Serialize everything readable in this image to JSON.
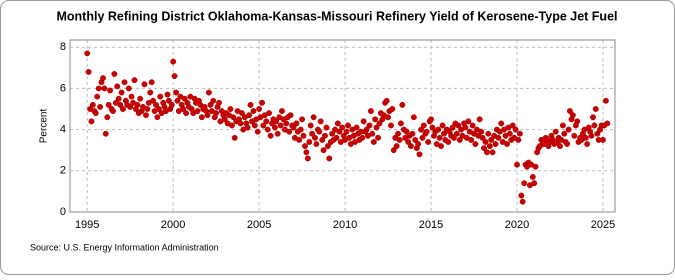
{
  "chart_data": {
    "type": "scatter",
    "title": "Monthly Refining District Oklahoma-Kansas-Missouri Refinery Yield of Kerosene-Type Jet Fuel",
    "y_label": "Percent",
    "source": "Source: U.S. Energy Information Administration",
    "xlim": [
      1994,
      2025.7
    ],
    "xticks": [
      1995,
      2000,
      2005,
      2010,
      2015,
      2020,
      2025
    ],
    "ylim": [
      0,
      8.35
    ],
    "yticks": [
      0,
      2,
      4,
      6,
      8
    ],
    "grid": true,
    "series": [
      {
        "color": "#cc0000",
        "x": [
          1995,
          1995.08,
          1995.17,
          1995.25,
          1995.33,
          1995.42,
          1995.5,
          1995.58,
          1995.67,
          1995.75,
          1995.83,
          1995.92,
          1996,
          1996.08,
          1996.17,
          1996.25,
          1996.33,
          1996.42,
          1996.5,
          1996.58,
          1996.67,
          1996.75,
          1996.83,
          1996.92,
          1997,
          1997.08,
          1997.17,
          1997.25,
          1997.33,
          1997.42,
          1997.5,
          1997.58,
          1997.67,
          1997.75,
          1997.83,
          1997.92,
          1998,
          1998.08,
          1998.17,
          1998.25,
          1998.33,
          1998.42,
          1998.5,
          1998.58,
          1998.67,
          1998.75,
          1998.83,
          1998.92,
          1999,
          1999.08,
          1999.17,
          1999.25,
          1999.33,
          1999.42,
          1999.5,
          1999.58,
          1999.67,
          1999.75,
          1999.83,
          1999.92,
          2000,
          2000.08,
          2000.17,
          2000.25,
          2000.33,
          2000.42,
          2000.5,
          2000.58,
          2000.67,
          2000.75,
          2000.83,
          2000.92,
          2001,
          2001.08,
          2001.17,
          2001.25,
          2001.33,
          2001.42,
          2001.5,
          2001.58,
          2001.67,
          2001.75,
          2001.83,
          2001.92,
          2002,
          2002.08,
          2002.17,
          2002.25,
          2002.33,
          2002.42,
          2002.5,
          2002.58,
          2002.67,
          2002.75,
          2002.83,
          2002.92,
          2003,
          2003.08,
          2003.17,
          2003.25,
          2003.33,
          2003.42,
          2003.5,
          2003.58,
          2003.67,
          2003.75,
          2003.83,
          2003.92,
          2004,
          2004.08,
          2004.17,
          2004.25,
          2004.33,
          2004.42,
          2004.5,
          2004.58,
          2004.67,
          2004.75,
          2004.83,
          2004.92,
          2005,
          2005.08,
          2005.17,
          2005.25,
          2005.33,
          2005.42,
          2005.5,
          2005.58,
          2005.67,
          2005.75,
          2005.83,
          2005.92,
          2006,
          2006.08,
          2006.17,
          2006.25,
          2006.33,
          2006.42,
          2006.5,
          2006.58,
          2006.67,
          2006.75,
          2006.83,
          2006.92,
          2007,
          2007.08,
          2007.17,
          2007.25,
          2007.33,
          2007.42,
          2007.5,
          2007.58,
          2007.67,
          2007.75,
          2007.83,
          2007.92,
          2008,
          2008.08,
          2008.17,
          2008.25,
          2008.33,
          2008.42,
          2008.5,
          2008.58,
          2008.67,
          2008.75,
          2008.83,
          2008.92,
          2009,
          2009.08,
          2009.17,
          2009.25,
          2009.33,
          2009.42,
          2009.5,
          2009.58,
          2009.67,
          2009.75,
          2009.83,
          2009.92,
          2010,
          2010.08,
          2010.17,
          2010.25,
          2010.33,
          2010.42,
          2010.5,
          2010.58,
          2010.67,
          2010.75,
          2010.83,
          2010.92,
          2011,
          2011.08,
          2011.17,
          2011.25,
          2011.33,
          2011.42,
          2011.5,
          2011.58,
          2011.67,
          2011.75,
          2011.83,
          2011.92,
          2012,
          2012.08,
          2012.17,
          2012.25,
          2012.33,
          2012.42,
          2012.5,
          2012.58,
          2012.67,
          2012.75,
          2012.83,
          2012.92,
          2013,
          2013.08,
          2013.17,
          2013.25,
          2013.33,
          2013.42,
          2013.5,
          2013.58,
          2013.67,
          2013.75,
          2013.83,
          2013.92,
          2014,
          2014.08,
          2014.17,
          2014.25,
          2014.33,
          2014.42,
          2014.5,
          2014.58,
          2014.67,
          2014.75,
          2014.83,
          2014.92,
          2015,
          2015.08,
          2015.17,
          2015.25,
          2015.33,
          2015.42,
          2015.5,
          2015.58,
          2015.67,
          2015.75,
          2015.83,
          2015.92,
          2016,
          2016.08,
          2016.17,
          2016.25,
          2016.33,
          2016.42,
          2016.5,
          2016.58,
          2016.67,
          2016.75,
          2016.83,
          2016.92,
          2017,
          2017.08,
          2017.17,
          2017.25,
          2017.33,
          2017.42,
          2017.5,
          2017.58,
          2017.67,
          2017.75,
          2017.83,
          2017.92,
          2018,
          2018.08,
          2018.17,
          2018.25,
          2018.33,
          2018.42,
          2018.5,
          2018.58,
          2018.67,
          2018.75,
          2018.83,
          2018.92,
          2019,
          2019.08,
          2019.17,
          2019.25,
          2019.33,
          2019.42,
          2019.5,
          2019.58,
          2019.67,
          2019.75,
          2019.83,
          2019.92,
          2020,
          2020.08,
          2020.17,
          2020.25,
          2020.33,
          2020.42,
          2020.5,
          2020.58,
          2020.67,
          2020.75,
          2020.83,
          2020.92,
          2021,
          2021.08,
          2021.17,
          2021.25,
          2021.33,
          2021.42,
          2021.5,
          2021.58,
          2021.67,
          2021.75,
          2021.83,
          2021.92,
          2022,
          2022.08,
          2022.17,
          2022.25,
          2022.33,
          2022.42,
          2022.5,
          2022.58,
          2022.67,
          2022.75,
          2022.83,
          2022.92,
          2023,
          2023.08,
          2023.17,
          2023.25,
          2023.33,
          2023.42,
          2023.5,
          2023.58,
          2023.67,
          2023.75,
          2023.83,
          2023.92,
          2024,
          2024.08,
          2024.17,
          2024.25,
          2024.33,
          2024.42,
          2024.5,
          2024.58,
          2024.67,
          2024.75,
          2024.83,
          2024.92,
          2025,
          2025.08,
          2025.17,
          2025.25
        ],
        "values": [
          7.7,
          6.8,
          5.0,
          4.4,
          5.2,
          4.9,
          4.8,
          5.6,
          6.0,
          5.1,
          6.3,
          6.5,
          6.0,
          3.8,
          4.6,
          5.2,
          5.9,
          5.0,
          4.9,
          6.7,
          5.3,
          6.1,
          5.5,
          5.2,
          5.8,
          5.0,
          6.3,
          5.4,
          5.2,
          6.0,
          5.1,
          5.6,
          5.3,
          6.4,
          5.0,
          5.2,
          4.8,
          5.5,
          4.9,
          5.1,
          6.2,
          4.7,
          5.0,
          5.3,
          5.8,
          6.3,
          5.4,
          4.9,
          5.2,
          4.6,
          5.0,
          5.6,
          4.8,
          5.3,
          5.1,
          4.9,
          5.7,
          5.4,
          5.0,
          5.2,
          7.3,
          6.6,
          5.8,
          5.4,
          4.9,
          5.6,
          5.2,
          5.0,
          5.5,
          4.8,
          5.3,
          5.1,
          5.6,
          5.0,
          4.8,
          5.5,
          5.3,
          4.9,
          5.4,
          5.2,
          4.6,
          5.0,
          5.1,
          4.9,
          4.7,
          5.8,
          5.2,
          4.9,
          5.4,
          4.6,
          4.8,
          5.1,
          5.3,
          4.4,
          4.9,
          4.7,
          4.5,
          4.8,
          4.3,
          4.7,
          5.0,
          4.2,
          4.6,
          3.6,
          4.4,
          4.9,
          4.5,
          4.3,
          4.8,
          4.0,
          4.6,
          4.3,
          4.1,
          4.7,
          5.2,
          4.4,
          4.9,
          4.2,
          4.5,
          3.9,
          5.0,
          4.6,
          5.3,
          4.2,
          4.7,
          4.4,
          4.0,
          4.8,
          3.7,
          4.3,
          4.5,
          4.1,
          4.4,
          3.8,
          4.6,
          4.2,
          4.9,
          4.5,
          4.0,
          4.3,
          4.6,
          3.9,
          4.7,
          4.2,
          4.1,
          3.6,
          4.3,
          3.9,
          3.5,
          4.0,
          4.5,
          3.7,
          3.2,
          2.9,
          2.6,
          3.4,
          4.2,
          3.8,
          4.6,
          3.6,
          3.3,
          4.0,
          3.9,
          4.4,
          3.5,
          3.0,
          3.7,
          4.1,
          3.2,
          2.6,
          3.4,
          3.8,
          3.5,
          4.0,
          3.6,
          4.3,
          3.9,
          3.4,
          4.1,
          3.7,
          3.5,
          3.9,
          4.2,
          3.6,
          3.3,
          4.0,
          3.7,
          3.4,
          4.1,
          3.8,
          3.5,
          3.9,
          3.6,
          4.4,
          3.9,
          4.0,
          3.7,
          4.2,
          4.9,
          3.8,
          3.4,
          4.5,
          4.1,
          3.6,
          4.3,
          4.8,
          4.5,
          4.7,
          5.3,
          5.4,
          4.6,
          4.9,
          4.2,
          5.0,
          3.0,
          3.6,
          3.2,
          3.8,
          3.5,
          4.3,
          5.2,
          4.0,
          3.6,
          3.9,
          3.4,
          3.7,
          3.2,
          3.8,
          4.6,
          3.5,
          3.1,
          3.3,
          2.8,
          4.0,
          3.6,
          4.2,
          3.8,
          3.9,
          3.4,
          4.4,
          4.5,
          4.1,
          3.7,
          3.9,
          3.3,
          4.0,
          3.6,
          3.2,
          4.2,
          3.8,
          3.5,
          4.0,
          3.4,
          3.9,
          3.7,
          4.1,
          3.6,
          4.3,
          3.8,
          4.2,
          3.5,
          4.0,
          3.7,
          4.3,
          4.1,
          3.6,
          4.4,
          3.9,
          3.5,
          4.2,
          3.8,
          3.3,
          4.0,
          3.7,
          4.5,
          3.9,
          3.6,
          3.1,
          3.4,
          2.9,
          3.8,
          3.2,
          3.5,
          2.9,
          3.7,
          3.3,
          4.0,
          3.6,
          3.9,
          4.3,
          3.4,
          4.0,
          3.7,
          3.3,
          4.1,
          3.8,
          3.5,
          4.2,
          3.6,
          4.0,
          2.3,
          3.5,
          3.8,
          0.8,
          0.5,
          1.4,
          2.3,
          2.2,
          2.4,
          1.3,
          2.3,
          1.7,
          1.4,
          2.2,
          2.9,
          3.1,
          3.2,
          3.5,
          3.4,
          3.3,
          3.6,
          3.5,
          3.2,
          3.4,
          3.7,
          3.5,
          3.3,
          3.9,
          3.4,
          3.6,
          3.2,
          3.5,
          4.2,
          3.8,
          3.4,
          3.3,
          4.0,
          4.9,
          4.5,
          4.7,
          3.7,
          4.2,
          4.4,
          3.4,
          3.6,
          3.5,
          3.8,
          4.0,
          3.6,
          3.3,
          4.1,
          3.9,
          3.7,
          4.6,
          4.2,
          5.0,
          3.8,
          3.5,
          4.0,
          4.2,
          3.5,
          4.2,
          5.4,
          4.3
        ]
      }
    ]
  }
}
